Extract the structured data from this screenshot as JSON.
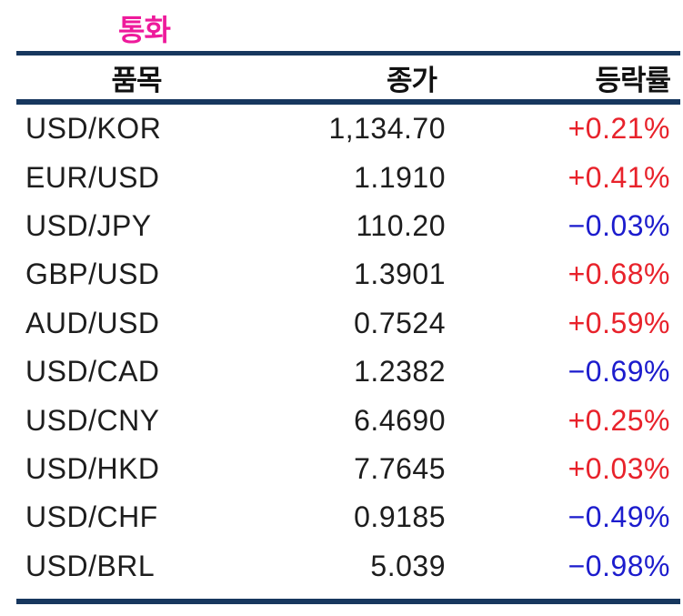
{
  "section": {
    "title": "통화"
  },
  "table": {
    "headers": [
      "품목",
      "종가",
      "등락률"
    ],
    "rows": [
      {
        "pair": "USD/KOR",
        "close": "1,134.70",
        "change": "+0.21%",
        "direction": "up"
      },
      {
        "pair": "EUR/USD",
        "close": "1.1910",
        "change": "+0.41%",
        "direction": "up"
      },
      {
        "pair": "USD/JPY",
        "close": "110.20",
        "change": "−0.03%",
        "direction": "down"
      },
      {
        "pair": "GBP/USD",
        "close": "1.3901",
        "change": "+0.68%",
        "direction": "up"
      },
      {
        "pair": "AUD/USD",
        "close": "0.7524",
        "change": "+0.59%",
        "direction": "up"
      },
      {
        "pair": "USD/CAD",
        "close": "1.2382",
        "change": "−0.69%",
        "direction": "down"
      },
      {
        "pair": "USD/CNY",
        "close": "6.4690",
        "change": "+0.25%",
        "direction": "up"
      },
      {
        "pair": "USD/HKD",
        "close": "7.7645",
        "change": "+0.03%",
        "direction": "up"
      },
      {
        "pair": "USD/CHF",
        "close": "0.9185",
        "change": "−0.49%",
        "direction": "down"
      },
      {
        "pair": "USD/BRL",
        "close": "5.039",
        "change": "−0.98%",
        "direction": "down"
      }
    ]
  },
  "colors": {
    "title": "#ee1a9b",
    "up": "#e8222b",
    "down": "#1c1ccd",
    "rule": "#17375e",
    "text": "#1d1d1d"
  },
  "chart_data": {
    "type": "table",
    "title": "통화",
    "columns": [
      "품목",
      "종가",
      "등락률"
    ],
    "rows": [
      [
        "USD/KOR",
        1134.7,
        0.21
      ],
      [
        "EUR/USD",
        1.191,
        0.41
      ],
      [
        "USD/JPY",
        110.2,
        -0.03
      ],
      [
        "GBP/USD",
        1.3901,
        0.68
      ],
      [
        "AUD/USD",
        0.7524,
        0.59
      ],
      [
        "USD/CAD",
        1.2382,
        -0.69
      ],
      [
        "USD/CNY",
        6.469,
        0.25
      ],
      [
        "USD/HKD",
        7.7645,
        0.03
      ],
      [
        "USD/CHF",
        0.9185,
        -0.49
      ],
      [
        "USD/BRL",
        5.039,
        -0.98
      ]
    ],
    "notes": "등락률 column is percent change; positive values rendered red, negative values rendered blue"
  }
}
